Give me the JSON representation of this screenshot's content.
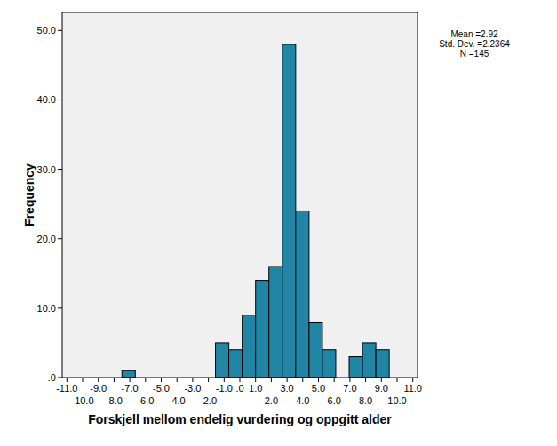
{
  "chart_data": {
    "type": "histogram",
    "x_label": "Forskjell mellom endelig vurdering og oppgitt alder",
    "y_label": "Frequency",
    "annotations": [
      "Mean =2.92",
      "Std. Dev. =2.2364",
      "N =145"
    ],
    "bins": [
      -7.5,
      -6.65,
      -5.8,
      -4.95,
      -4.1,
      -3.25,
      -2.4,
      -1.55,
      -0.7,
      0.15,
      1.0,
      1.85,
      2.7,
      3.55,
      4.4,
      5.25,
      6.1,
      6.95,
      7.8,
      8.65,
      9.5
    ],
    "values": [
      1,
      0,
      0,
      0,
      0,
      0,
      0,
      5,
      4,
      9,
      14,
      16,
      48,
      24,
      8,
      4,
      0,
      3,
      5,
      4
    ],
    "color": "#2186a6",
    "grid": false,
    "xlim": [
      -11.3,
      11.3
    ],
    "ylim": [
      0,
      52.6
    ],
    "xticks": [
      {
        "value": -11,
        "label": "-11.0"
      },
      {
        "value": -10,
        "label": "-10.0"
      },
      {
        "value": -9,
        "label": "-9.0"
      },
      {
        "value": -8,
        "label": "-8.0"
      },
      {
        "value": -7,
        "label": "-7.0"
      },
      {
        "value": -6,
        "label": "-6.0"
      },
      {
        "value": -5,
        "label": "-5.0"
      },
      {
        "value": -4,
        "label": "-4.0"
      },
      {
        "value": -3,
        "label": "-3.0"
      },
      {
        "value": -2,
        "label": "-2.0"
      },
      {
        "value": -1,
        "label": "-1.0"
      },
      {
        "value": 0,
        "label": ".0"
      },
      {
        "value": 1,
        "label": "1.0"
      },
      {
        "value": 2,
        "label": "2.0"
      },
      {
        "value": 3,
        "label": "3.0"
      },
      {
        "value": 4,
        "label": "4.0"
      },
      {
        "value": 5,
        "label": "5.0"
      },
      {
        "value": 6,
        "label": "6.0"
      },
      {
        "value": 7,
        "label": "7.0"
      },
      {
        "value": 8,
        "label": "8.0"
      },
      {
        "value": 9,
        "label": "9.0"
      },
      {
        "value": 10,
        "label": "10.0"
      },
      {
        "value": 11,
        "label": "11.0"
      }
    ],
    "yticks": [
      {
        "value": 0,
        "label": ".0"
      },
      {
        "value": 10,
        "label": "10.0"
      },
      {
        "value": 20,
        "label": "20.0"
      },
      {
        "value": 30,
        "label": "30.0"
      },
      {
        "value": 40,
        "label": "40.0"
      },
      {
        "value": 50,
        "label": "50.0"
      }
    ]
  }
}
